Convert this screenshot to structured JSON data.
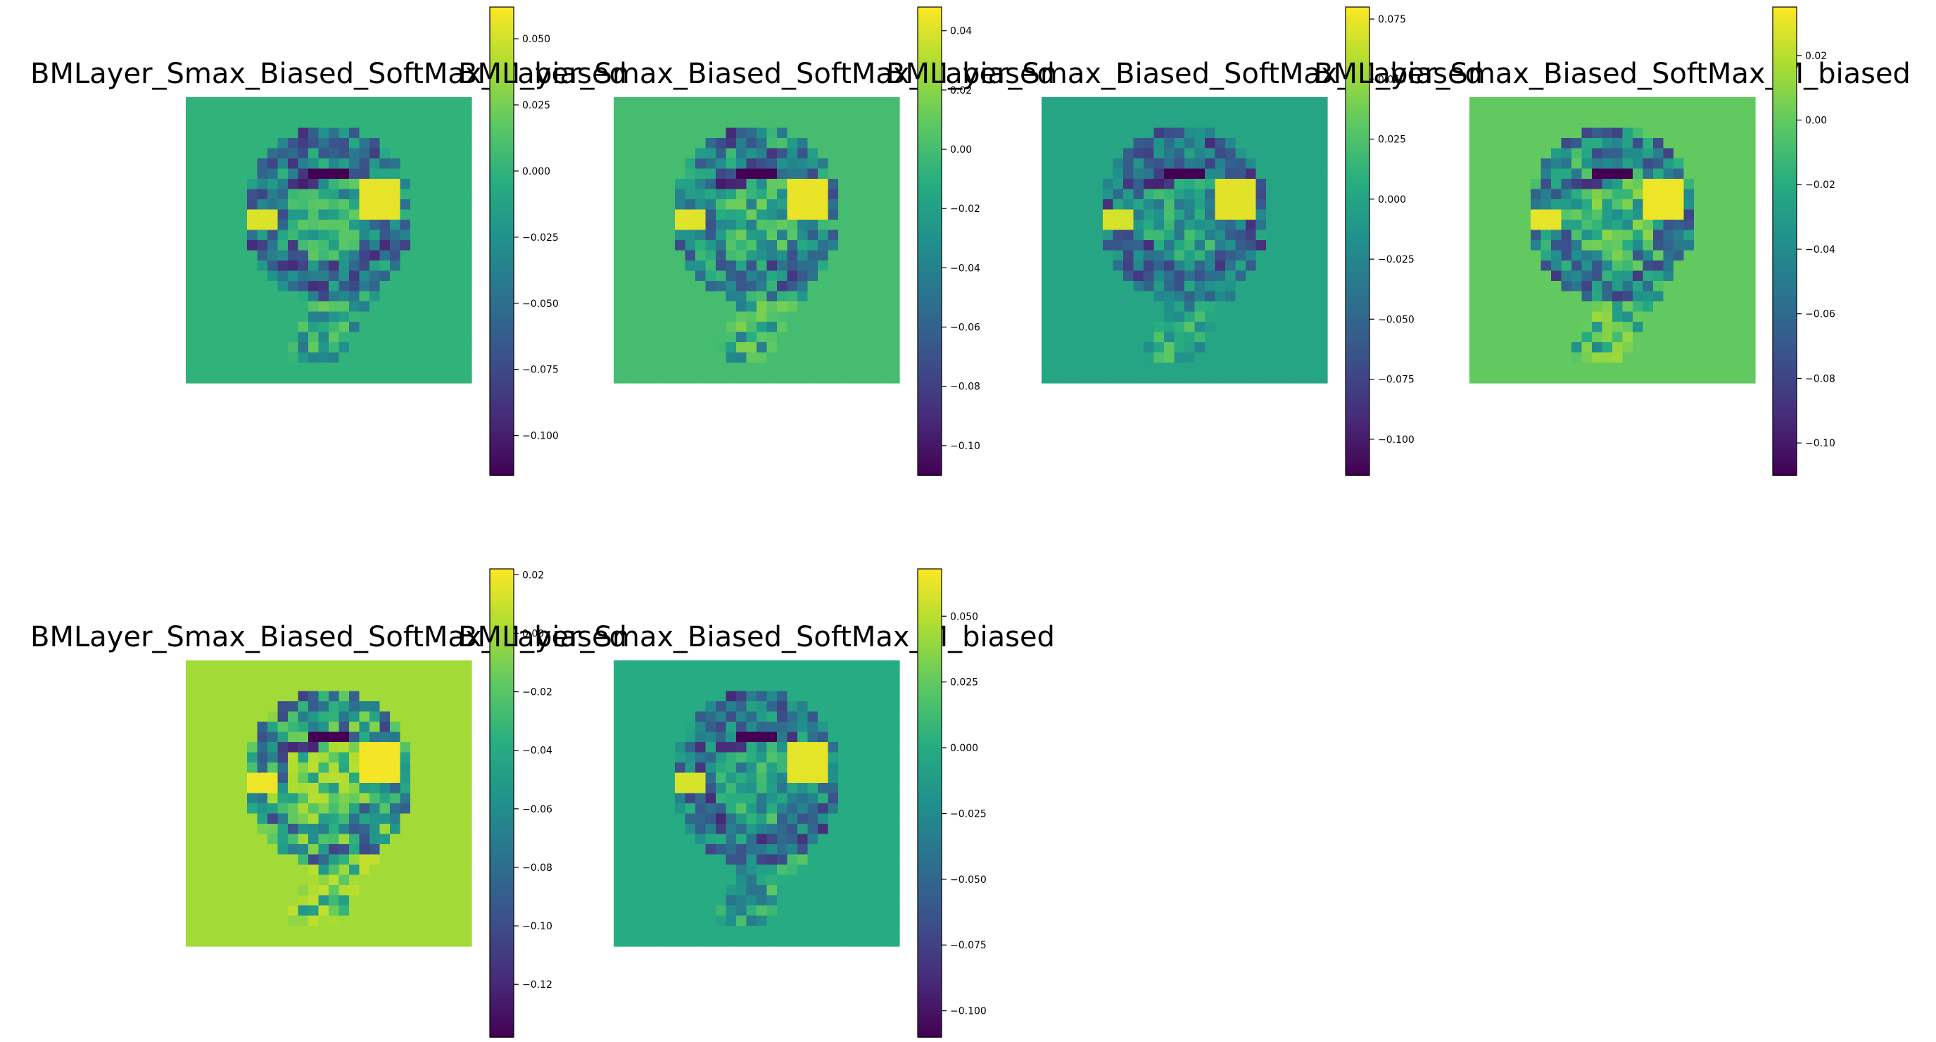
{
  "chart_data": [
    {
      "type": "heatmap",
      "title": "BMLayer_Smax_Biased_SoftMax_M_biased",
      "colorbar": {
        "colormap": "viridis",
        "range": [
          -0.115,
          0.062
        ],
        "ticks": [
          0.05,
          0.025,
          0.0,
          -0.025,
          -0.05,
          -0.075,
          -0.1
        ],
        "tick_labels": [
          "0.050",
          "0.025",
          "0.000",
          "−0.025",
          "−0.050",
          "−0.075",
          "−0.100"
        ]
      }
    },
    {
      "type": "heatmap",
      "title": "BMLayer_Smax_Biased_SoftMax_M_biased",
      "colorbar": {
        "colormap": "viridis",
        "range": [
          -0.11,
          0.048
        ],
        "ticks": [
          0.04,
          0.02,
          0.0,
          -0.02,
          -0.04,
          -0.06,
          -0.08,
          -0.1
        ],
        "tick_labels": [
          "0.04",
          "0.02",
          "0.00",
          "−0.02",
          "−0.04",
          "−0.06",
          "−0.08",
          "−0.10"
        ]
      }
    },
    {
      "type": "heatmap",
      "title": "BMLayer_Smax_Biased_SoftMax_M_biased",
      "colorbar": {
        "colormap": "viridis",
        "range": [
          -0.115,
          0.08
        ],
        "ticks": [
          0.075,
          0.05,
          0.025,
          0.0,
          -0.025,
          -0.05,
          -0.075,
          -0.1
        ],
        "tick_labels": [
          "0.075",
          "0.050",
          "0.025",
          "0.000",
          "−0.025",
          "−0.050",
          "−0.075",
          "−0.100"
        ]
      }
    },
    {
      "type": "heatmap",
      "title": "BMLayer_Smax_Biased_SoftMax_M_biased",
      "colorbar": {
        "colormap": "viridis",
        "range": [
          -0.11,
          0.035
        ],
        "ticks": [
          0.02,
          0.0,
          -0.02,
          -0.04,
          -0.06,
          -0.08,
          -0.1
        ],
        "tick_labels": [
          "0.02",
          "0.00",
          "−0.02",
          "−0.04",
          "−0.06",
          "−0.08",
          "−0.10"
        ]
      }
    },
    {
      "type": "heatmap",
      "title": "BMLayer_Smax_Biased_SoftMax_M_biased",
      "colorbar": {
        "colormap": "viridis",
        "range": [
          -0.138,
          0.022
        ],
        "ticks": [
          0.02,
          0.0,
          -0.02,
          -0.04,
          -0.06,
          -0.08,
          -0.1,
          -0.12
        ],
        "tick_labels": [
          "0.02",
          "0.00",
          "−0.02",
          "−0.04",
          "−0.06",
          "−0.08",
          "−0.10",
          "−0.12"
        ]
      }
    },
    {
      "type": "heatmap",
      "title": "BMLayer_Smax_Biased_SoftMax_M_biased",
      "colorbar": {
        "colormap": "viridis",
        "range": [
          -0.11,
          0.068
        ],
        "ticks": [
          0.05,
          0.025,
          0.0,
          -0.025,
          -0.05,
          -0.075,
          -0.1
        ],
        "tick_labels": [
          "0.050",
          "0.025",
          "0.000",
          "−0.025",
          "−0.050",
          "−0.075",
          "−0.100"
        ]
      }
    }
  ]
}
